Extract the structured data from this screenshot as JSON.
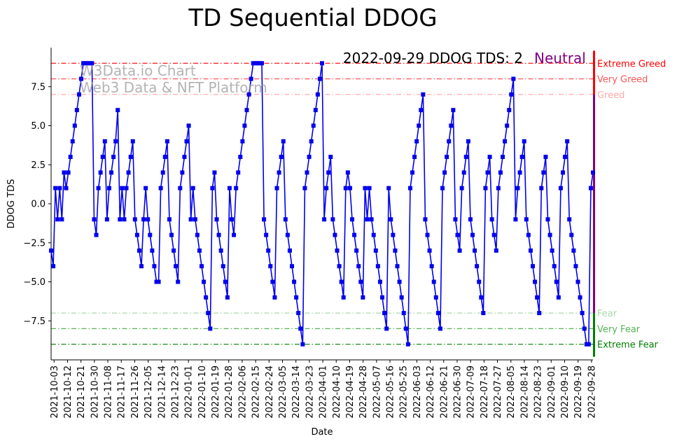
{
  "chart_data": {
    "type": "line",
    "title": "TD Sequential DDOG",
    "xlabel": "Date",
    "ylabel": "DDOG TDS",
    "ylim": [
      -10,
      10
    ],
    "yticks": [
      -7.5,
      -5.0,
      -2.5,
      0.0,
      2.5,
      5.0,
      7.5
    ],
    "ytick_labels": [
      "−7.5",
      "−5.0",
      "−2.5",
      "0.0",
      "2.5",
      "5.0",
      "7.5"
    ],
    "x_start": "2021-10-01",
    "x_end": "2022-09-29",
    "xtick_labels": [
      "2021-10-03",
      "2021-10-12",
      "2021-10-21",
      "2021-10-30",
      "2021-11-08",
      "2021-11-17",
      "2021-11-26",
      "2021-12-05",
      "2021-12-14",
      "2021-12-23",
      "2022-01-01",
      "2022-01-10",
      "2022-01-19",
      "2022-01-28",
      "2022-02-06",
      "2022-02-15",
      "2022-02-24",
      "2022-03-05",
      "2022-03-14",
      "2022-03-23",
      "2022-04-01",
      "2022-04-10",
      "2022-04-19",
      "2022-04-28",
      "2022-05-07",
      "2022-05-16",
      "2022-05-25",
      "2022-06-03",
      "2022-06-12",
      "2022-06-21",
      "2022-06-30",
      "2022-07-09",
      "2022-07-18",
      "2022-07-27",
      "2022-08-05",
      "2022-08-14",
      "2022-08-23",
      "2022-09-01",
      "2022-09-10",
      "2022-09-19",
      "2022-09-28"
    ],
    "series": [
      {
        "color": "#0000ee",
        "marker": "square",
        "values": [
          -3,
          -4,
          1,
          -1,
          1,
          -1,
          2,
          1,
          2,
          3,
          4,
          5,
          6,
          7,
          8,
          9,
          9,
          9,
          9,
          9,
          -1,
          -2,
          1,
          2,
          3,
          4,
          -1,
          1,
          2,
          3,
          4,
          6,
          -1,
          1,
          -1,
          1,
          2,
          3,
          4,
          -1,
          -2,
          -3,
          -4,
          -1,
          1,
          -1,
          -2,
          -3,
          -4,
          -5,
          -5,
          1,
          2,
          3,
          4,
          -1,
          -2,
          -3,
          -4,
          -5,
          1,
          2,
          3,
          4,
          5,
          -1,
          1,
          -1,
          -2,
          -3,
          -4,
          -5,
          -6,
          -7,
          -8,
          1,
          2,
          -1,
          -2,
          -3,
          -4,
          -5,
          -6,
          1,
          -1,
          -2,
          1,
          2,
          3,
          4,
          5,
          6,
          7,
          8,
          9,
          9,
          9,
          9,
          9,
          -1,
          -2,
          -3,
          -4,
          -5,
          -6,
          1,
          2,
          3,
          4,
          -1,
          -2,
          -3,
          -4,
          -5,
          -6,
          -7,
          -8,
          -9,
          1,
          2,
          3,
          4,
          5,
          6,
          7,
          8,
          9,
          -1,
          1,
          2,
          3,
          -1,
          -2,
          -3,
          -4,
          -5,
          -6,
          1,
          2,
          1,
          -1,
          -2,
          -3,
          -4,
          -5,
          -6,
          1,
          -1,
          1,
          -1,
          -2,
          -3,
          -4,
          -5,
          -6,
          -7,
          -8,
          1,
          -1,
          -2,
          -3,
          -4,
          -5,
          -6,
          -7,
          -8,
          -9,
          1,
          2,
          3,
          4,
          5,
          6,
          7,
          -1,
          -2,
          -3,
          -4,
          -5,
          -6,
          -7,
          -8,
          1,
          2,
          3,
          4,
          5,
          6,
          -1,
          -2,
          -3,
          1,
          2,
          3,
          4,
          -1,
          -2,
          -3,
          -4,
          -5,
          -6,
          -7,
          1,
          2,
          3,
          -1,
          -2,
          -3,
          1,
          2,
          3,
          4,
          5,
          6,
          7,
          8,
          -1,
          1,
          2,
          3,
          4,
          -1,
          -2,
          -3,
          -4,
          -5,
          -6,
          -7,
          1,
          2,
          3,
          -1,
          -2,
          -3,
          -4,
          -5,
          -6,
          1,
          2,
          3,
          4,
          -1,
          -2,
          -3,
          -4,
          -5,
          -6,
          -7,
          -8,
          -9,
          -9,
          1,
          2
        ]
      }
    ],
    "thresholds": [
      {
        "label": "Extreme Greed",
        "value": 9,
        "color": "#ff0000",
        "style": "dashdot"
      },
      {
        "label": "Very Greed",
        "value": 8,
        "color": "#ff5555",
        "style": "dashdot"
      },
      {
        "label": "Greed",
        "value": 7,
        "color": "#ffaaaa",
        "style": "dashdot"
      },
      {
        "label": "Fear",
        "value": -7,
        "color": "#aad8aa",
        "style": "dashdot"
      },
      {
        "label": "Very Fear",
        "value": -8,
        "color": "#55b455",
        "style": "dashdot"
      },
      {
        "label": "Extreme Fear",
        "value": -9,
        "color": "#008000",
        "style": "dashdot"
      }
    ],
    "status": {
      "text": "2022-09-29 DDOG TDS: 2",
      "sentiment": "Neutral",
      "sentiment_color": "#800080"
    },
    "watermark": {
      "line1": "W3Data.io Chart",
      "line2": "Web3 Data & NFT Platform"
    },
    "grid": false
  }
}
